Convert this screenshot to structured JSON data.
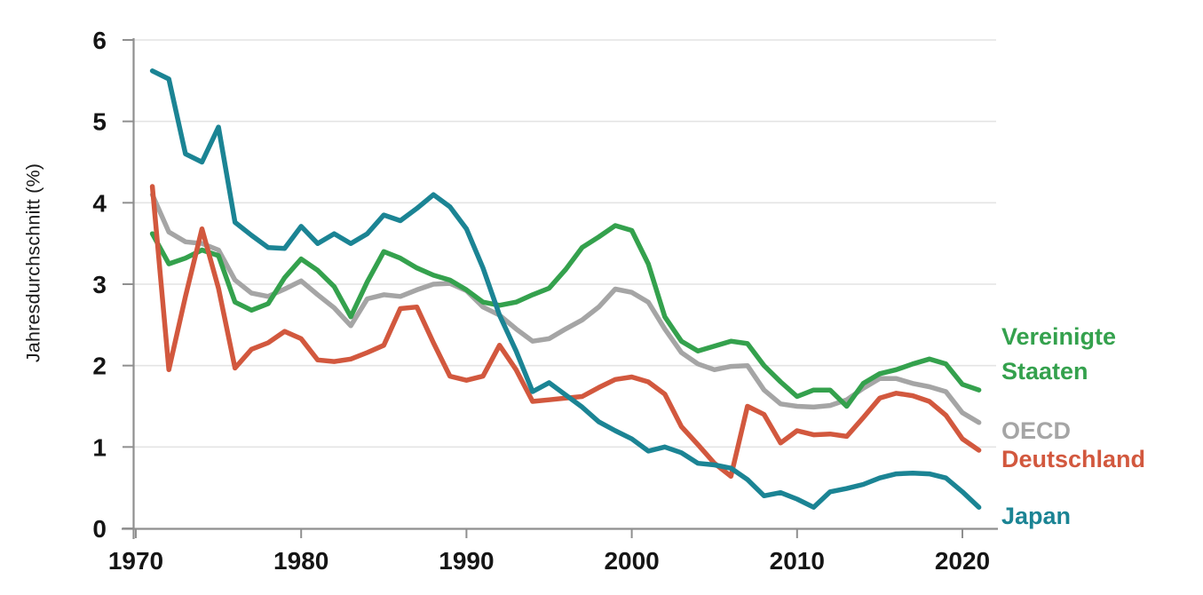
{
  "chart_data": {
    "type": "line",
    "title": "",
    "ylabel": "Jahresdurchschnitt (%)",
    "xlabel": "",
    "ylim": [
      0,
      6
    ],
    "yticks": [
      "0",
      "1",
      "2",
      "3",
      "4",
      "5",
      "6"
    ],
    "xticks": [
      "1970",
      "1980",
      "1990",
      "2000",
      "2010",
      "2020"
    ],
    "xtick_years": [
      1970,
      1980,
      1990,
      2000,
      2010,
      2020
    ],
    "grid": "horizontal-only",
    "legend_position": "right-outside",
    "x": [
      1971,
      1972,
      1973,
      1974,
      1975,
      1976,
      1977,
      1978,
      1979,
      1980,
      1981,
      1982,
      1983,
      1984,
      1985,
      1986,
      1987,
      1988,
      1989,
      1990,
      1991,
      1992,
      1993,
      1994,
      1995,
      1996,
      1997,
      1998,
      1999,
      2000,
      2001,
      2002,
      2003,
      2004,
      2005,
      2006,
      2007,
      2008,
      2009,
      2010,
      2011,
      2012,
      2013,
      2014,
      2015,
      2016,
      2017,
      2018,
      2019,
      2020,
      2021
    ],
    "series": [
      {
        "name": "OECD",
        "legend_lines": [
          "OECD"
        ],
        "color": "#a5a5a5",
        "values": [
          4.1,
          3.64,
          3.52,
          3.5,
          3.42,
          3.05,
          2.89,
          2.85,
          2.94,
          3.04,
          2.87,
          2.71,
          2.49,
          2.82,
          2.87,
          2.85,
          2.93,
          3.0,
          3.01,
          2.92,
          2.72,
          2.62,
          2.45,
          2.3,
          2.33,
          2.45,
          2.56,
          2.72,
          2.94,
          2.9,
          2.78,
          2.45,
          2.16,
          2.02,
          1.95,
          1.99,
          2.0,
          1.7,
          1.53,
          1.5,
          1.49,
          1.51,
          1.58,
          1.72,
          1.84,
          1.84,
          1.78,
          1.74,
          1.68,
          1.42,
          1.3
        ]
      },
      {
        "name": "Vereinigte Staaten",
        "legend_lines": [
          "Vereinigte",
          "Staaten"
        ],
        "color": "#34a14d",
        "values": [
          3.62,
          3.25,
          3.32,
          3.42,
          3.35,
          2.78,
          2.68,
          2.76,
          3.08,
          3.31,
          3.17,
          2.97,
          2.6,
          3.03,
          3.4,
          3.32,
          3.2,
          3.11,
          3.05,
          2.93,
          2.78,
          2.74,
          2.78,
          2.87,
          2.95,
          3.18,
          3.45,
          3.58,
          3.72,
          3.66,
          3.25,
          2.6,
          2.3,
          2.18,
          2.24,
          2.3,
          2.27,
          2.0,
          1.8,
          1.62,
          1.7,
          1.7,
          1.5,
          1.78,
          1.9,
          1.95,
          2.02,
          2.08,
          2.02,
          1.77,
          1.7
        ]
      },
      {
        "name": "Deutschland",
        "legend_lines": [
          "Deutschland"
        ],
        "color": "#d2583e",
        "values": [
          4.2,
          1.95,
          2.85,
          3.68,
          2.95,
          1.97,
          2.2,
          2.28,
          2.42,
          2.33,
          2.07,
          2.05,
          2.08,
          2.16,
          2.25,
          2.7,
          2.72,
          2.28,
          1.87,
          1.82,
          1.87,
          2.25,
          1.95,
          1.56,
          1.58,
          1.6,
          1.62,
          1.73,
          1.83,
          1.86,
          1.8,
          1.65,
          1.25,
          1.03,
          0.8,
          0.64,
          1.5,
          1.4,
          1.05,
          1.2,
          1.15,
          1.16,
          1.13,
          1.36,
          1.6,
          1.66,
          1.63,
          1.56,
          1.39,
          1.1,
          0.96
        ]
      },
      {
        "name": "Japan",
        "legend_lines": [
          "Japan"
        ],
        "color": "#1b8494",
        "values": [
          5.62,
          5.52,
          4.6,
          4.5,
          4.93,
          3.76,
          3.6,
          3.45,
          3.44,
          3.71,
          3.5,
          3.62,
          3.5,
          3.62,
          3.85,
          3.78,
          3.93,
          4.1,
          3.95,
          3.68,
          3.2,
          2.62,
          2.18,
          1.68,
          1.79,
          1.64,
          1.49,
          1.31,
          1.2,
          1.1,
          0.95,
          1.0,
          0.93,
          0.8,
          0.78,
          0.74,
          0.6,
          0.4,
          0.44,
          0.36,
          0.26,
          0.45,
          0.49,
          0.54,
          0.62,
          0.67,
          0.68,
          0.67,
          0.62,
          0.45,
          0.26
        ]
      }
    ],
    "colors": {
      "grid": "#e4e4e4",
      "axis": "#8f8f8f",
      "tick_label": "#151515"
    }
  }
}
